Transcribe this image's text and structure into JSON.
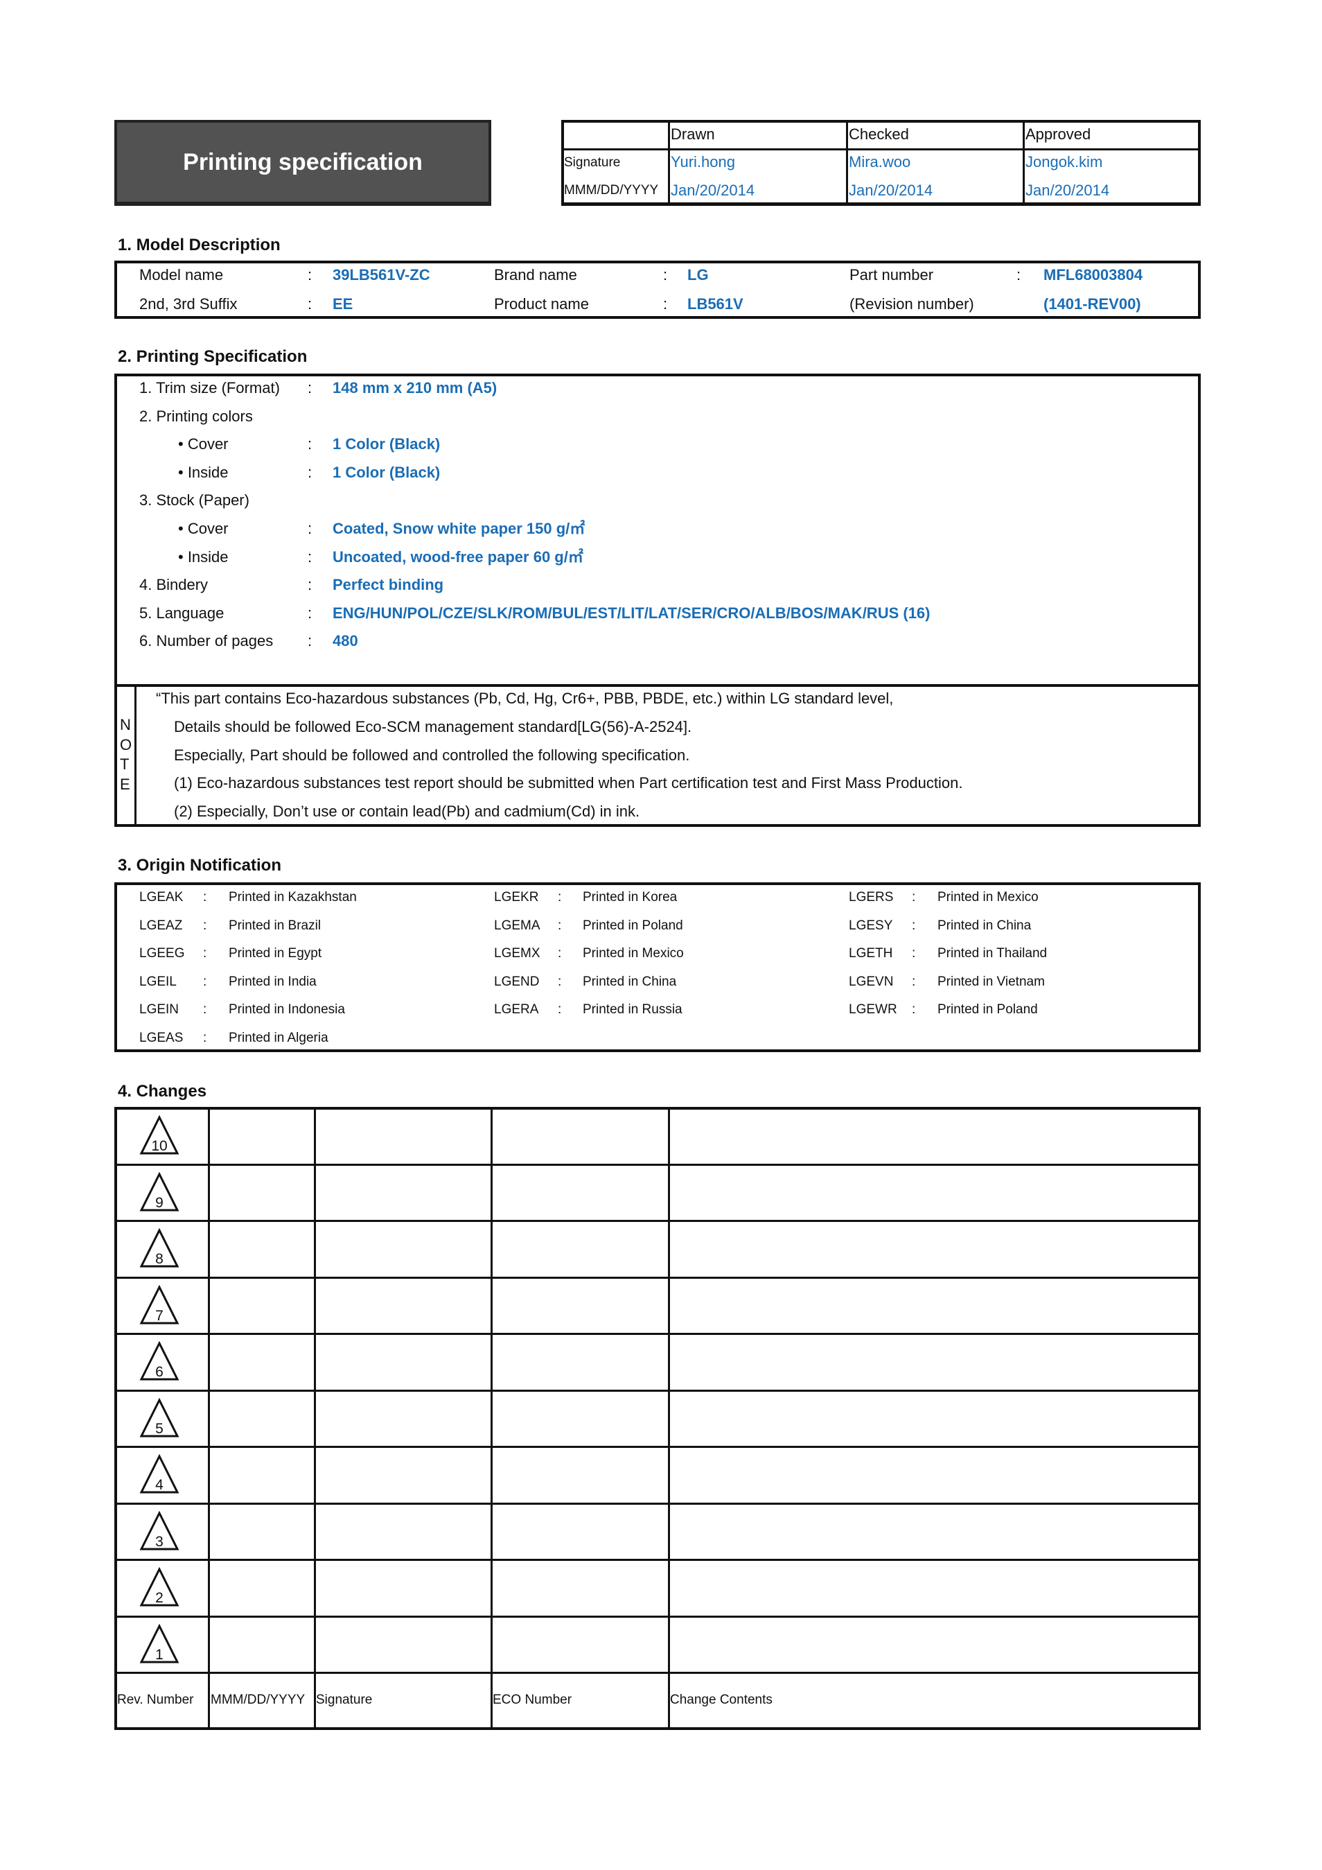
{
  "header": {
    "title": "Printing specification",
    "sign_table": {
      "columns": [
        "Drawn",
        "Checked",
        "Approved"
      ],
      "row_labels": [
        "Signature",
        "MMM/DD/YYYY"
      ],
      "signatures": [
        "Yuri.hong",
        "Mira.woo",
        "Jongok.kim"
      ],
      "dates": [
        "Jan/20/2014",
        "Jan/20/2014",
        "Jan/20/2014"
      ]
    }
  },
  "model": {
    "heading": "1. Model Description",
    "fields": [
      {
        "label": "Model name",
        "value": "39LB561V-ZC"
      },
      {
        "label": "2nd, 3rd Suffix",
        "value": "EE"
      },
      {
        "label": "Brand name",
        "value": "LG"
      },
      {
        "label": "Product name",
        "value": "LB561V"
      },
      {
        "label": "Part number",
        "value": "MFL68003804"
      },
      {
        "label": "(Revision number)",
        "value": "(1401-REV00)"
      }
    ]
  },
  "spec": {
    "heading": "2. Printing Specification",
    "rows": [
      {
        "label": "1. Trim size (Format)",
        "value": "148 mm x 210 mm (A5)",
        "indent": false
      },
      {
        "label": "2. Printing colors",
        "value": "",
        "indent": false
      },
      {
        "label": "• Cover",
        "value": "1 Color (Black)",
        "indent": true
      },
      {
        "label": "• Inside",
        "value": "1 Color (Black)",
        "indent": true
      },
      {
        "label": "3. Stock (Paper)",
        "value": "",
        "indent": false
      },
      {
        "label": "• Cover",
        "value": "Coated, Snow white paper 150 g/㎡",
        "indent": true
      },
      {
        "label": "• Inside",
        "value": "Uncoated, wood-free paper 60 g/㎡",
        "indent": true
      },
      {
        "label": "4. Bindery",
        "value": "Perfect binding",
        "indent": false
      },
      {
        "label": "5. Language",
        "value": "ENG/HUN/POL/CZE/SLK/ROM/BUL/EST/LIT/LAT/SER/CRO/ALB/BOS/MAK/RUS (16)",
        "indent": false
      },
      {
        "label": "6. Number of pages",
        "value": "480",
        "indent": false
      }
    ],
    "note_label": [
      "N",
      "O",
      "T",
      "E"
    ],
    "note_lines": [
      "“This part contains Eco-hazardous substances (Pb, Cd, Hg, Cr6+, PBB, PBDE, etc.) within LG standard level,",
      "Details should be followed Eco-SCM management standard[LG(56)-A-2524].",
      "Especially, Part should be followed and controlled the following specification.",
      "(1) Eco-hazardous substances test report should be submitted when Part certification test and First Mass Production.",
      "(2) Especially, Don’t use or contain lead(Pb) and cadmium(Cd) in ink."
    ]
  },
  "origin": {
    "heading": "3. Origin Notification",
    "columns": [
      [
        {
          "code": "LGEAK",
          "text": "Printed in Kazakhstan"
        },
        {
          "code": "LGEAZ",
          "text": "Printed in Brazil"
        },
        {
          "code": "LGEEG",
          "text": "Printed in Egypt"
        },
        {
          "code": "LGEIL",
          "text": "Printed in India"
        },
        {
          "code": "LGEIN",
          "text": "Printed in Indonesia"
        },
        {
          "code": "LGEAS",
          "text": "Printed in Algeria"
        }
      ],
      [
        {
          "code": "LGEKR",
          "text": "Printed in Korea"
        },
        {
          "code": "LGEMA",
          "text": "Printed in Poland"
        },
        {
          "code": "LGEMX",
          "text": "Printed in Mexico"
        },
        {
          "code": "LGEND",
          "text": "Printed in China"
        },
        {
          "code": "LGERA",
          "text": "Printed in Russia"
        }
      ],
      [
        {
          "code": "LGERS",
          "text": "Printed in Mexico"
        },
        {
          "code": "LGESY",
          "text": "Printed in China"
        },
        {
          "code": "LGETH",
          "text": "Printed in Thailand"
        },
        {
          "code": "LGEVN",
          "text": "Printed in Vietnam"
        },
        {
          "code": "LGEWR",
          "text": "Printed in Poland"
        }
      ]
    ]
  },
  "changes": {
    "heading": "4. Changes",
    "revisions": [
      "10",
      "9",
      "8",
      "7",
      "6",
      "5",
      "4",
      "3",
      "2",
      "1"
    ],
    "footer": [
      "Rev. Number",
      "MMM/DD/YYYY",
      "Signature",
      "ECO Number",
      "Change Contents"
    ]
  },
  "colors": {
    "value_blue": "#1a6db5",
    "title_bg": "#525252"
  }
}
